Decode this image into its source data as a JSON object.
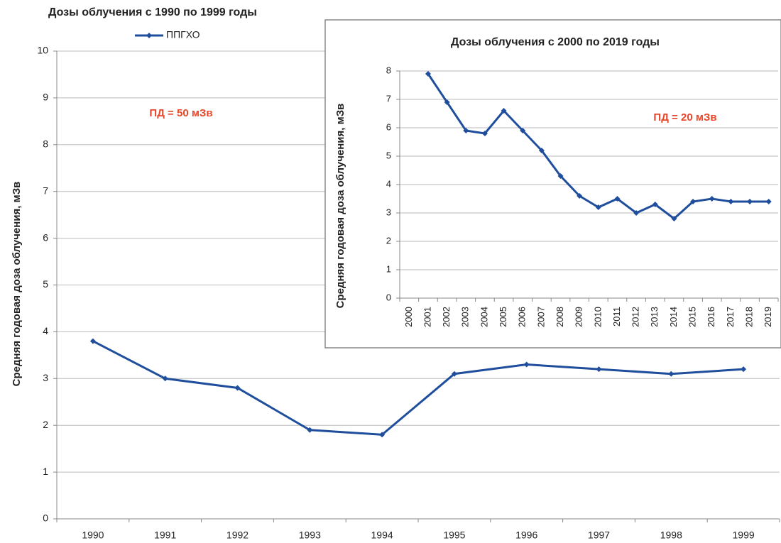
{
  "chart_data": [
    {
      "type": "line",
      "title": "Дозы облучения с 1990 по 1999 годы",
      "y_label": "Средняя годовая доза облучения, мЗв",
      "annotation": {
        "text": "ПД = 50 мЗв",
        "color": "#e8462a"
      },
      "categories": [
        "1990",
        "1991",
        "1992",
        "1993",
        "1994",
        "1995",
        "1996",
        "1997",
        "1998",
        "1999"
      ],
      "series": [
        {
          "name": "ППГХО",
          "color": "#1f4e9c",
          "values": [
            3.8,
            3.0,
            2.8,
            1.9,
            1.8,
            3.1,
            3.3,
            3.2,
            3.1,
            3.2
          ]
        }
      ],
      "ylim": [
        0,
        10
      ],
      "yticks": [
        0,
        1,
        2,
        3,
        4,
        5,
        6,
        7,
        8,
        9,
        10
      ],
      "grid": true,
      "legend": "top-left"
    },
    {
      "type": "line",
      "title": "Дозы облучения с  2000 по 2019 годы",
      "y_label": "Средняя годовая доза облучения, мЗв",
      "annotation": {
        "text": "ПД = 20 мЗв",
        "color": "#e8462a"
      },
      "categories": [
        "2000",
        "2001",
        "2002",
        "2003",
        "2004",
        "2005",
        "2006",
        "2007",
        "2008",
        "2009",
        "2010",
        "2011",
        "2012",
        "2013",
        "2014",
        "2015",
        "2016",
        "2017",
        "2018",
        "2019"
      ],
      "values": [
        null,
        7.9,
        6.9,
        5.9,
        5.8,
        6.6,
        5.9,
        5.2,
        4.3,
        3.6,
        3.2,
        3.5,
        3.0,
        3.3,
        2.8,
        3.4,
        3.5,
        3.4,
        3.4,
        3.4
      ],
      "color": "#1f4e9c",
      "ylim": [
        0,
        8
      ],
      "yticks": [
        0,
        1,
        2,
        3,
        4,
        5,
        6,
        7,
        8
      ],
      "grid": true
    }
  ]
}
